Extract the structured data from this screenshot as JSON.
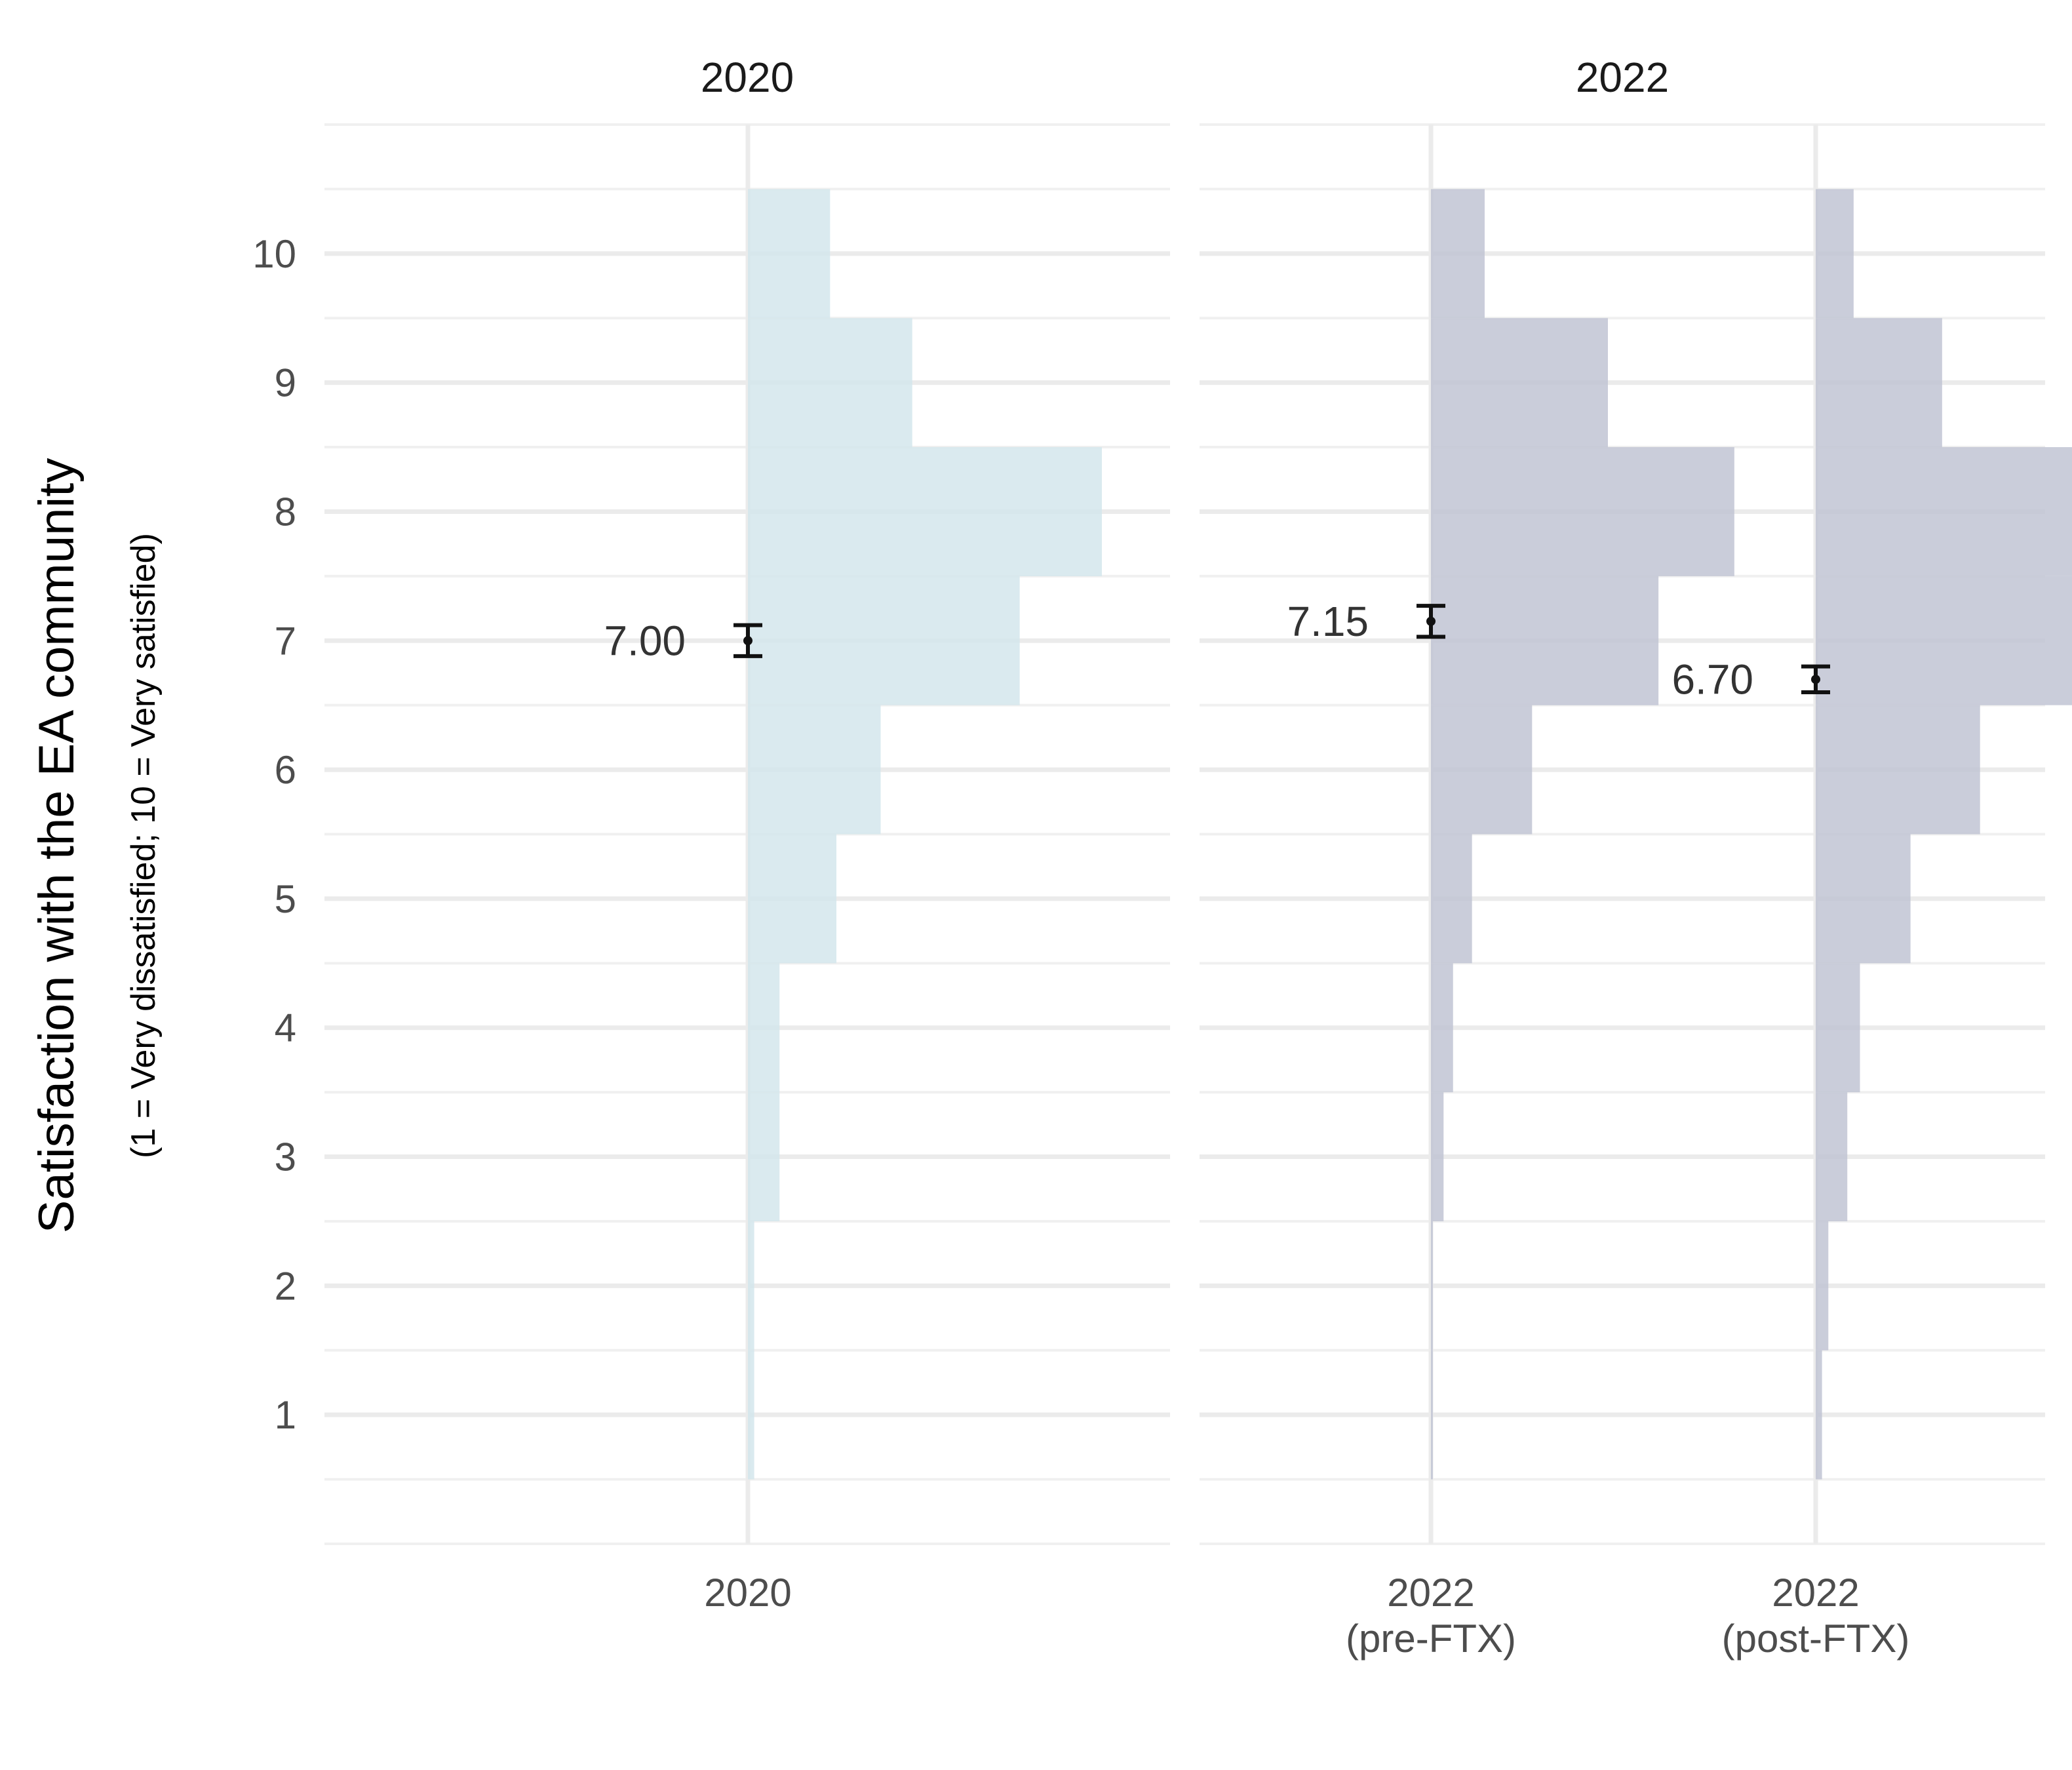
{
  "chart_data": {
    "type": "histogram",
    "ylabel": "Satisfaction with the EA community",
    "ylabel_sub": "(1 = Very dissatisfied; 10 = Very satisfied)",
    "ylim": [
      0,
      11
    ],
    "y_ticks": [
      "1",
      "2",
      "3",
      "4",
      "5",
      "6",
      "7",
      "8",
      "9",
      "10"
    ],
    "y_tick_values": [
      1,
      2,
      3,
      4,
      5,
      6,
      7,
      8,
      9,
      10
    ],
    "grid": true,
    "legend": "none",
    "panels": [
      {
        "title": "2020",
        "x_labels": [
          [
            "2020"
          ]
        ],
        "series": [
          {
            "color": "#d4e6ec",
            "bins": [
              1,
              2,
              3,
              4,
              5,
              6,
              7,
              8,
              9,
              10
            ],
            "values": [
              0.01,
              0.01,
              0.05,
              0.05,
              0.14,
              0.21,
              0.43,
              0.56,
              0.26,
              0.13
            ],
            "mean": 7.0,
            "ci": [
              6.88,
              7.12
            ],
            "mean_label": "7.00"
          }
        ]
      },
      {
        "title": "2022",
        "x_labels": [
          [
            "2022",
            "(pre-FTX)"
          ],
          [
            "2022",
            "(post-FTX)"
          ]
        ],
        "series": [
          {
            "color": "#c1c4d3",
            "bins": [
              1,
              2,
              3,
              4,
              5,
              6,
              7,
              8,
              9,
              10
            ],
            "values": [
              0.003,
              0.003,
              0.02,
              0.035,
              0.065,
              0.16,
              0.36,
              0.48,
              0.28,
              0.085
            ],
            "mean": 7.15,
            "ci": [
              7.03,
              7.27
            ],
            "mean_label": "7.15"
          },
          {
            "color": "#c1c4d3",
            "bins": [
              1,
              2,
              3,
              4,
              5,
              6,
              7,
              8,
              9,
              10
            ],
            "values": [
              0.01,
              0.02,
              0.05,
              0.07,
              0.15,
              0.26,
              0.48,
              0.45,
              0.2,
              0.06
            ],
            "mean": 6.7,
            "ci": [
              6.6,
              6.8
            ],
            "mean_label": "6.70"
          }
        ]
      }
    ]
  }
}
